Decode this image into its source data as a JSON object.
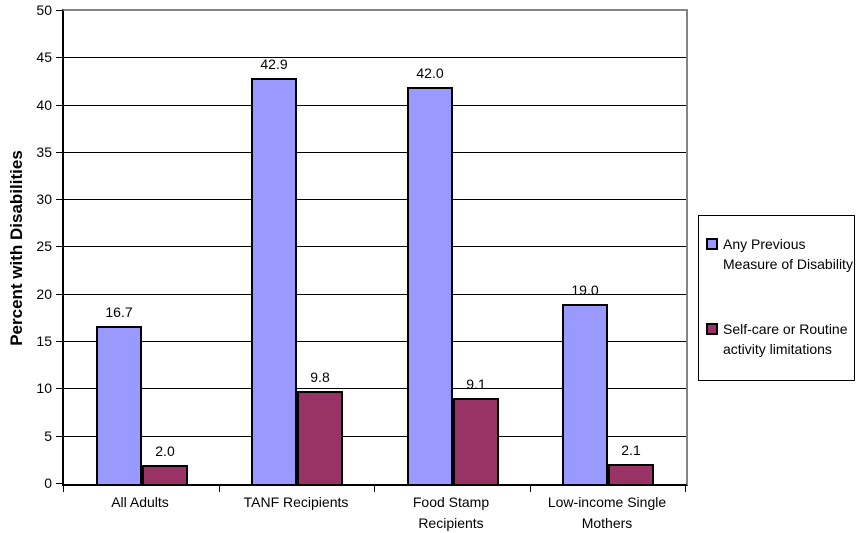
{
  "chart_data": {
    "type": "bar",
    "ylabel": "Percent with Disabilities",
    "ylim": [
      0,
      50
    ],
    "ytick_step": 5,
    "grid": "horizontal",
    "legend_position": "right",
    "categories": [
      "All Adults",
      "TANF Recipients",
      "Food Stamp Recipients",
      "Low-income Single Mothers"
    ],
    "category_label_lines": [
      [
        "All Adults"
      ],
      [
        "TANF Recipients"
      ],
      [
        "Food Stamp",
        "Recipients"
      ],
      [
        "Low-income Single",
        "Mothers"
      ]
    ],
    "series": [
      {
        "name": "Any Previous Measure of Disability",
        "label_lines": [
          "Any Previous",
          "Measure of Disability"
        ],
        "color": "#9999FF",
        "border_color": "#000000",
        "values": [
          16.7,
          42.9,
          42.0,
          19.0
        ]
      },
      {
        "name": "Self-care or Routine activity limitations",
        "label_lines": [
          "Self-care or Routine",
          "activity limitations"
        ],
        "color": "#993366",
        "border_color": "#000000",
        "values": [
          2.0,
          9.8,
          9.1,
          2.1
        ]
      }
    ],
    "value_labels": [
      [
        "16.7",
        "42.9",
        "42.0",
        "19.0"
      ],
      [
        "2.0",
        "9.8",
        "9.1",
        "2.1"
      ]
    ]
  },
  "colors": {
    "background": "#FFFFFF",
    "gridline": "#000000",
    "axis": "#000000",
    "plot_border_gray": "#848484"
  }
}
